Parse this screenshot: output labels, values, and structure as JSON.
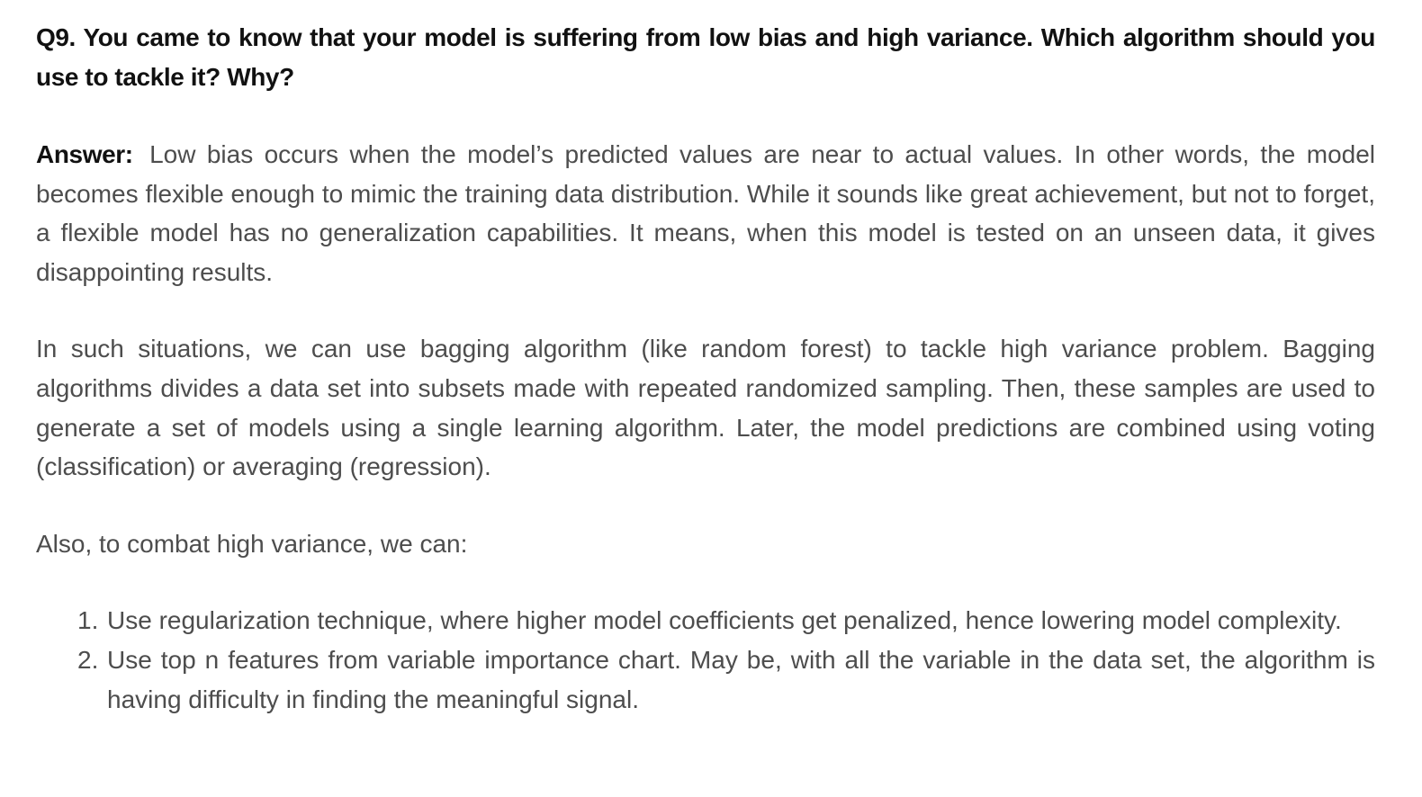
{
  "question": "Q9. You came to know that your model is suffering from low bias and high variance. Which algorithm should you use to tackle it? Why?",
  "answer": {
    "label": "Answer:",
    "text": "Low bias occurs when the model’s predicted values are near to actual values. In other words, the model becomes flexible enough to mimic the training data distribution. While it sounds like great achievement, but not to forget, a flexible model has no generalization capabilities. It means, when this model is tested on an unseen data, it gives disappointing results."
  },
  "paragraph2": "In such situations, we can use bagging algorithm (like random forest) to tackle high variance problem. Bagging algorithms divides a data set into subsets made with repeated randomized sampling. Then, these samples are used to generate  a set of models using a single learning algorithm. Later, the model predictions are combined using voting (classification) or averaging (regression).",
  "paragraph3": "Also, to combat high variance, we can:",
  "list": [
    {
      "number": "1.",
      "text": "Use regularization technique, where higher model coefficients get penalized, hence lowering model complexity."
    },
    {
      "number": "2.",
      "text": "Use top n features from variable importance chart. May be, with all the variable in the data set, the algorithm is having difficulty in finding the meaningful signal."
    }
  ]
}
